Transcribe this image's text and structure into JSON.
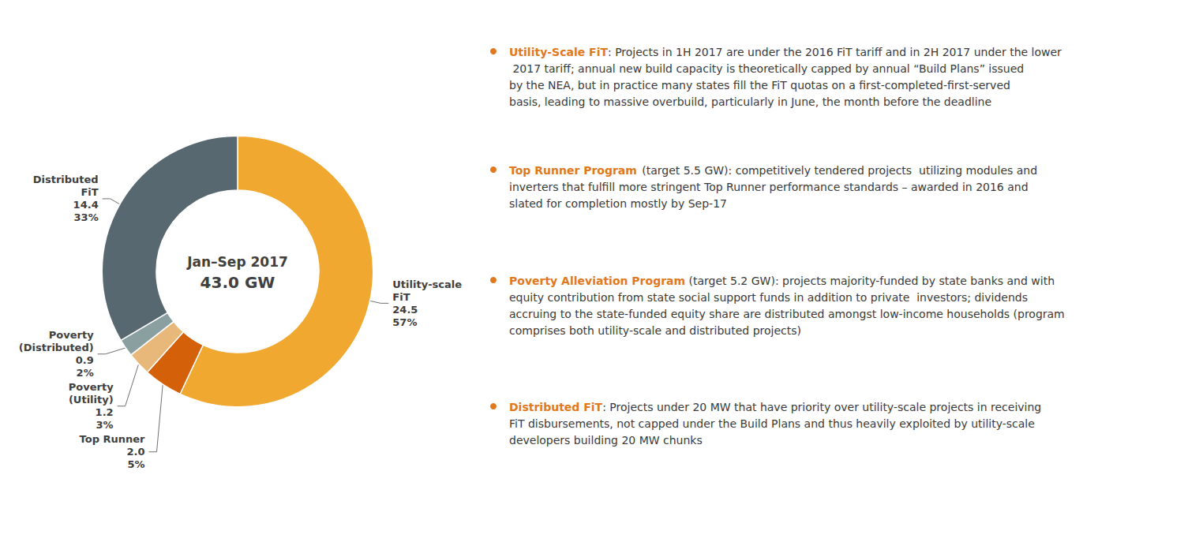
{
  "chart_data": {
    "type": "pie",
    "categories": [
      "Utility-scale\nFiT",
      "Top Runner",
      "Poverty\n(Utility)",
      "Poverty\n(Distributed)",
      "Distributed\nFiT"
    ],
    "values": [
      24.5,
      2.0,
      1.2,
      0.9,
      14.4
    ],
    "value_labels": [
      "24.5",
      "2.0",
      "1.2",
      "0.9",
      "14.4"
    ],
    "shares": [
      57,
      5,
      3,
      2,
      33
    ],
    "share_labels": [
      "57%",
      "5%",
      "3%",
      "2%",
      "33%"
    ],
    "colors": [
      "#f0a830",
      "#d4600a",
      "#e8b87a",
      "#8a9fa0",
      "#586870"
    ],
    "data_labels": true,
    "center_text": [
      "Jan–Sep 2017",
      "43.0 GW"
    ],
    "annotation_color": "#e07820",
    "annotations": [
      {
        "bold": "Utility-Scale FiT",
        "text": ": Projects in 1H 2017 are under the 2016 FiT tariff and in 2H 2017 under the lower 2017 tariff; annual new build capacity is theoretically capped by annual “Build Plans” issued by the NEA, but in practice many states fill the FiT quotas on a first-completed-first-served basis, leading to massive overbuild, particularly in June, the month before the deadline"
      },
      {
        "bold": "Top Runner Program",
        "text": " (target 5.5 GW): competitively tendered projects  utilizing modules and inverters that fulfill more stringent Top Runner performance standards – awarded in 2016 and slated for completion mostly by Sep-17"
      },
      {
        "bold": "Poverty Alleviation Program",
        "text": " (target 5.2 GW): projects majority-funded by state banks and with equity contribution from state social support funds in addition to private  investors; dividends accruing to the state-funded equity share are distributed amongst low-income households (program comprises both utility-scale and distributed projects)"
      },
      {
        "bold": "Distributed FiT",
        "text": ": Projects under 20 MW that have priority over utility-scale projects in receiving FiT disbursements, not capped under the Build Plans and thus heavily exploited by utility-scale developers building 20 MW chunks"
      }
    ]
  }
}
